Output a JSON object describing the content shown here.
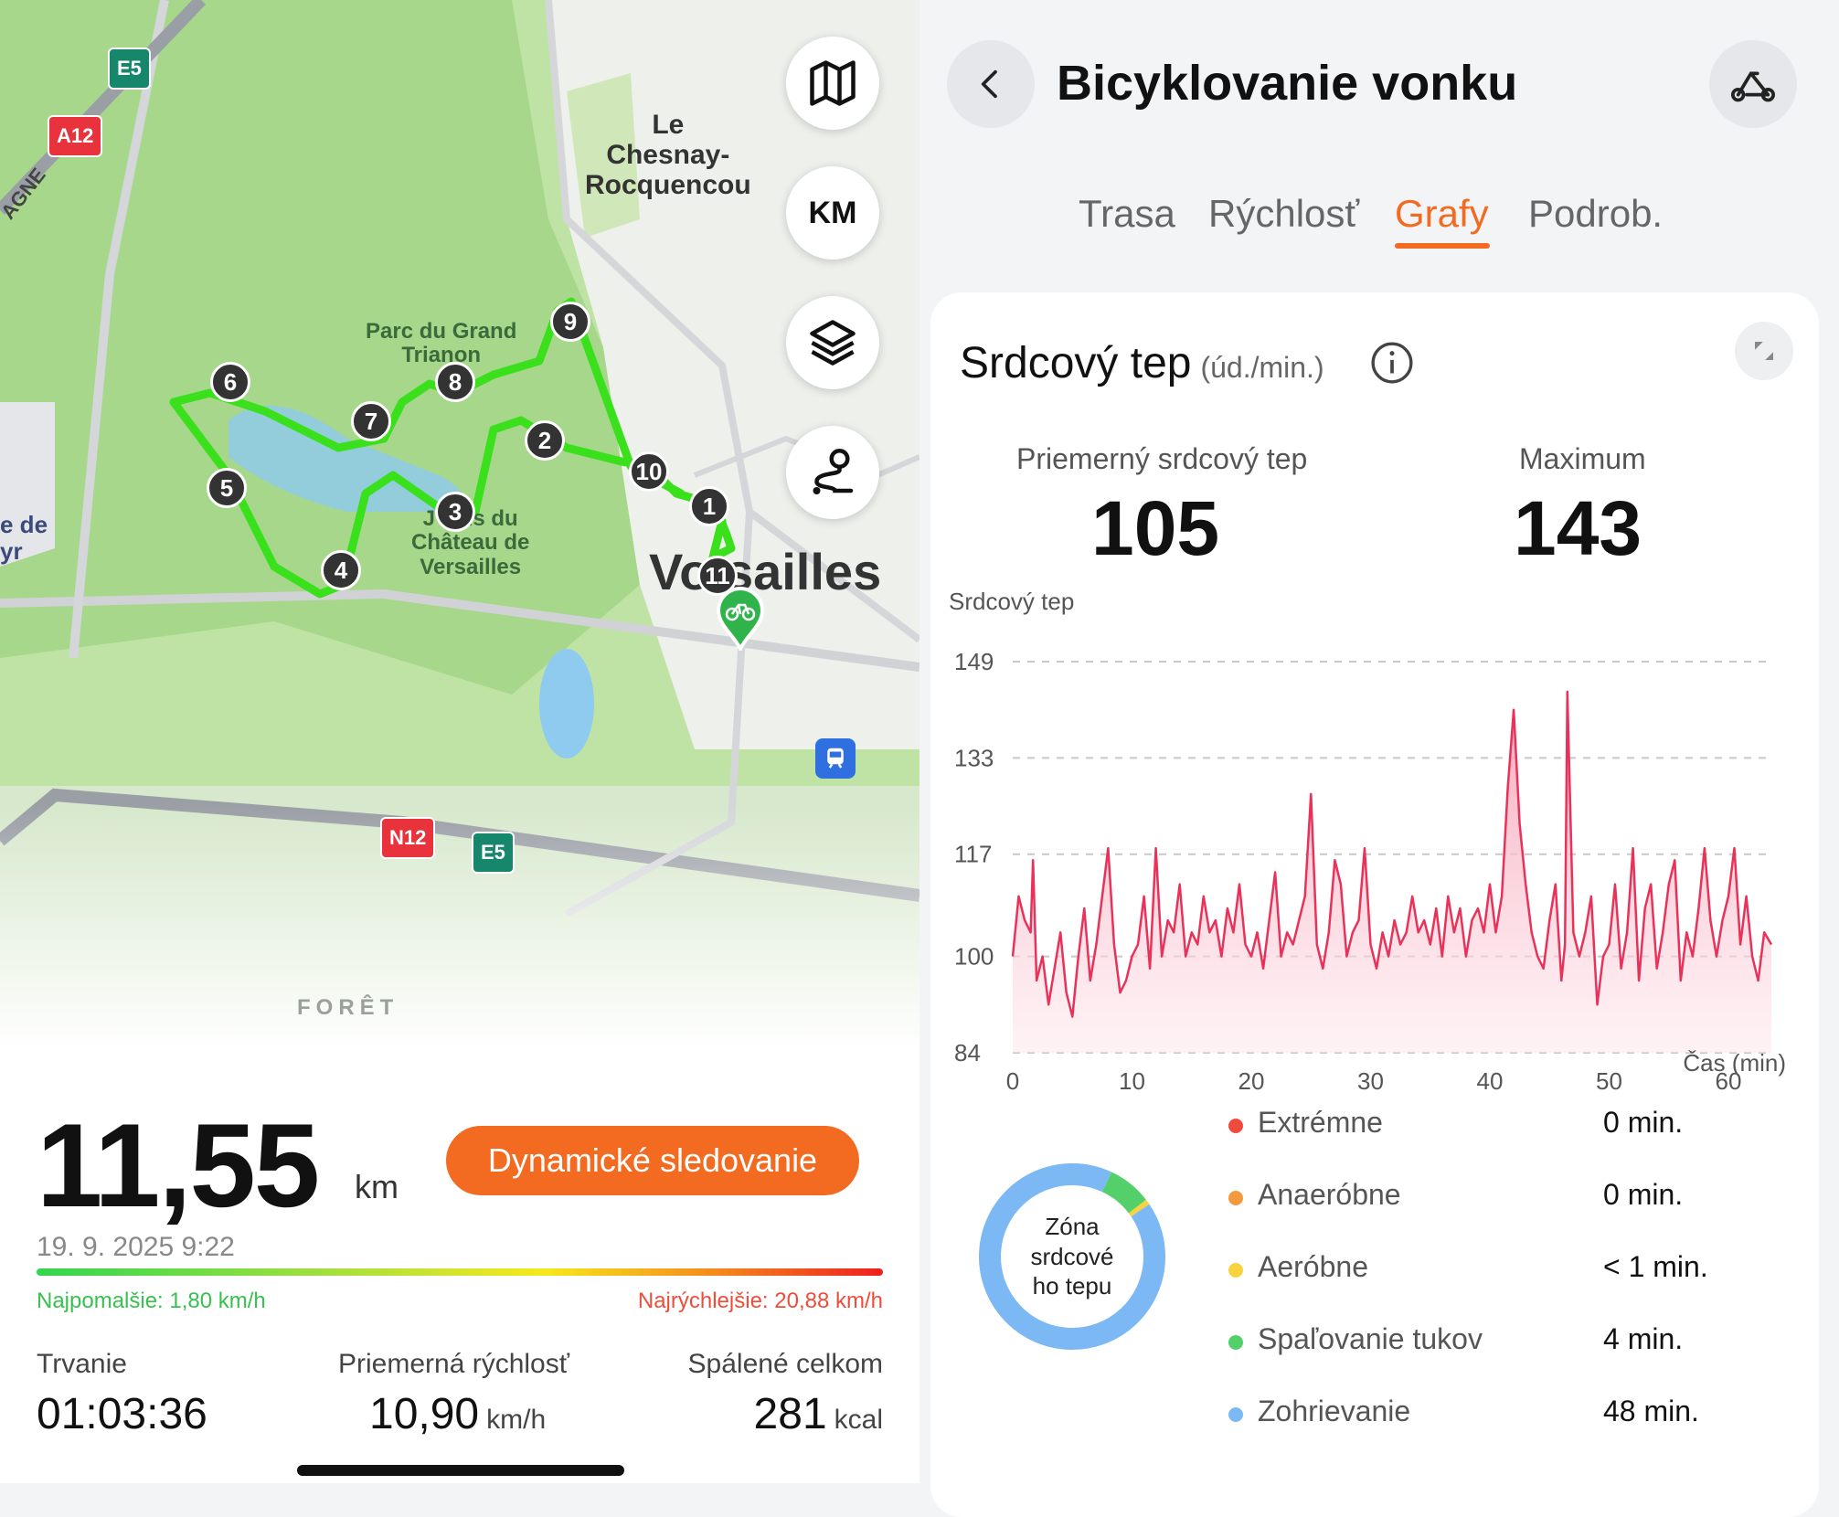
{
  "map": {
    "place_labels": {
      "chesnay": "Le\nChesnay-\nRocquencou",
      "grand_trianon": "Parc du Grand\nTrianon",
      "jardins": "J   ins du\nChâteau de\nVersailles",
      "versailles": "Vo sailles",
      "foret": "FORÊT",
      "saint_cyr": "e de\nyr",
      "agne": "AGNE"
    },
    "road_badges": {
      "e5_top": "E5",
      "a12": "A12",
      "n12": "N12",
      "e5_bottom": "E5"
    },
    "buttons": {
      "map_icon": "map-icon",
      "km_label": "KM",
      "layers_icon": "layers-icon",
      "route_icon": "route-icon"
    },
    "markers": [
      {
        "label": "1"
      },
      {
        "label": "2"
      },
      {
        "label": "3"
      },
      {
        "label": "4"
      },
      {
        "label": "5"
      },
      {
        "label": "6"
      },
      {
        "label": "7"
      },
      {
        "label": "8"
      },
      {
        "label": "9"
      },
      {
        "label": "10"
      },
      {
        "label": "11"
      }
    ],
    "route_color": "#3be01d"
  },
  "summary": {
    "distance": "11,55",
    "distance_unit": "km",
    "dynamic_button": "Dynamické sledovanie",
    "date": "19. 9. 2025 9:22",
    "slowest": "Najpomalšie: 1,80 km/h",
    "fastest": "Najrýchlejšie: 20,88 km/h",
    "stats": [
      {
        "label": "Trvanie",
        "value": "01:03:36",
        "unit": ""
      },
      {
        "label": "Priemerná rýchlosť",
        "value": "10,90",
        "unit": "km/h"
      },
      {
        "label": "Spálené celkom",
        "value": "281",
        "unit": "kcal"
      }
    ]
  },
  "header": {
    "title": "Bicyklovanie vonku",
    "back_icon": "chevron-left-icon",
    "bike_icon": "bicycle-icon"
  },
  "tabs": [
    {
      "label": "Trasa",
      "active": false
    },
    {
      "label": "Rýchlosť",
      "active": false
    },
    {
      "label": "Grafy",
      "active": true
    },
    {
      "label": "Podrob.",
      "active": false
    }
  ],
  "heart": {
    "title": "Srdcový tep",
    "unit": "(úd./min.)",
    "avg_label": "Priemerný srdcový tep",
    "avg_value": "105",
    "max_label": "Maximum",
    "max_value": "143",
    "accent": "#e8325a"
  },
  "chart_data": {
    "type": "area",
    "title": "",
    "ylabel": "Srdcový tep",
    "xlabel": "Čas (min)",
    "xlim": [
      0,
      63.6
    ],
    "ylim": [
      84,
      149
    ],
    "yticks": [
      84,
      100,
      117,
      133,
      149
    ],
    "xticks": [
      0,
      10,
      20,
      30,
      40,
      50,
      60
    ],
    "grid": true,
    "series": [
      {
        "x": [
          0,
          0.5,
          1,
          1.5,
          1.7,
          2,
          2.5,
          3,
          3.5,
          4,
          4.5,
          5,
          5.5,
          6,
          6.5,
          7,
          7.5,
          8,
          8.5,
          9,
          9.5,
          10,
          10.5,
          11,
          11.5,
          12,
          12.5,
          13,
          13.5,
          14,
          14.5,
          15,
          15.5,
          16,
          16.5,
          17,
          17.5,
          18,
          18.5,
          19,
          19.5,
          20,
          20.5,
          21,
          21.5,
          22,
          22.5,
          23,
          23.5,
          24,
          24.5,
          25,
          25.5,
          26,
          26.5,
          27,
          27.5,
          28,
          28.5,
          29,
          29.5,
          30,
          30.5,
          31,
          31.5,
          32,
          32.5,
          33,
          33.5,
          34,
          34.5,
          35,
          35.5,
          36,
          36.5,
          37,
          37.5,
          38,
          38.5,
          39,
          39.5,
          40,
          40.5,
          41,
          41.5,
          42,
          42.5,
          43,
          43.5,
          44,
          44.5,
          45,
          45.5,
          46,
          46.3,
          46.5,
          47,
          47.5,
          48,
          48.5,
          49,
          49.5,
          50,
          50.5,
          51,
          51.5,
          52,
          52.5,
          53,
          53.5,
          54,
          54.5,
          55,
          55.5,
          56,
          56.5,
          57,
          57.5,
          58,
          58.5,
          59,
          59.5,
          60,
          60.5,
          61,
          61.5,
          62,
          62.5,
          63,
          63.6
        ],
        "values": [
          100,
          110,
          106,
          104,
          116,
          96,
          100,
          92,
          98,
          104,
          94,
          90,
          100,
          108,
          96,
          102,
          110,
          118,
          102,
          94,
          96,
          100,
          102,
          110,
          98,
          118,
          100,
          106,
          104,
          112,
          100,
          104,
          102,
          110,
          104,
          106,
          100,
          108,
          104,
          112,
          102,
          100,
          104,
          98,
          106,
          114,
          100,
          104,
          102,
          106,
          110,
          127,
          102,
          98,
          104,
          116,
          112,
          100,
          104,
          106,
          118,
          102,
          98,
          104,
          100,
          106,
          102,
          104,
          110,
          104,
          106,
          102,
          108,
          100,
          110,
          104,
          108,
          100,
          106,
          108,
          104,
          112,
          104,
          110,
          128,
          141,
          122,
          112,
          104,
          100,
          98,
          106,
          112,
          96,
          102,
          144,
          104,
          100,
          104,
          110,
          92,
          100,
          102,
          112,
          98,
          104,
          118,
          96,
          108,
          112,
          98,
          104,
          112,
          116,
          96,
          104,
          100,
          108,
          118,
          106,
          100,
          106,
          110,
          118,
          102,
          110,
          100,
          96,
          104,
          102
        ]
      }
    ]
  },
  "zones": {
    "center_label": "Zóna\nsrdcové\nho tepu",
    "items": [
      {
        "name": "Extrémne",
        "time": "0 min.",
        "color": "#ef4b3c"
      },
      {
        "name": "Anaeróbne",
        "time": "0 min.",
        "color": "#f39a3d"
      },
      {
        "name": "Aeróbne",
        "time": "< 1 min.",
        "color": "#f6d33f"
      },
      {
        "name": "Spaľovanie tukov",
        "time": "4 min.",
        "color": "#53d06a"
      },
      {
        "name": "Zohrievanie",
        "time": "48 min.",
        "color": "#7cb8f4"
      }
    ],
    "minutes": [
      0,
      0,
      0.5,
      4,
      48
    ]
  }
}
